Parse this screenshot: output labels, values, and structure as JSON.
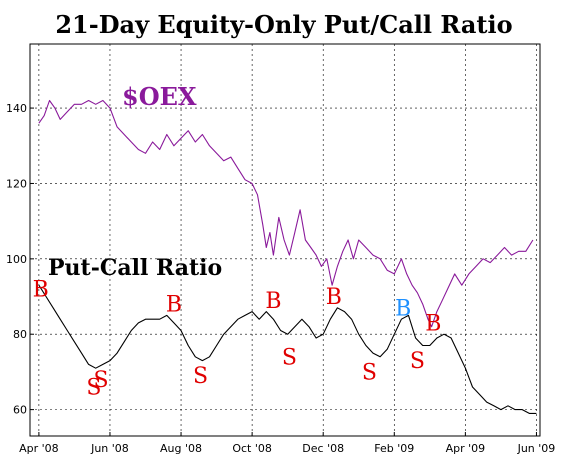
{
  "chart_data": {
    "type": "line",
    "title": "21-Day Equity-Only Put/Call Ratio",
    "xlabel": "",
    "ylabel": "",
    "x_ticks": [
      "Apr '08",
      "Jun '08",
      "Aug '08",
      "Oct '08",
      "Dec '08",
      "Feb '09",
      "Apr '09",
      "Jun '09"
    ],
    "x_tick_pos": [
      0,
      2,
      4,
      6,
      8,
      10,
      12,
      14
    ],
    "xlim": [
      -0.25,
      14.1
    ],
    "ylim": [
      53,
      157
    ],
    "y_ticks": [
      60,
      80,
      100,
      120,
      140
    ],
    "grid": true,
    "annotations": {
      "oex_label": "$OEX",
      "pc_label": "Put-Call Ratio"
    },
    "series": [
      {
        "name": "$OEX",
        "color": "#8a1a9b",
        "points": [
          [
            0,
            136
          ],
          [
            0.15,
            138
          ],
          [
            0.3,
            142
          ],
          [
            0.45,
            140
          ],
          [
            0.6,
            137
          ],
          [
            0.8,
            139
          ],
          [
            1.0,
            141
          ],
          [
            1.2,
            141
          ],
          [
            1.4,
            142
          ],
          [
            1.6,
            141
          ],
          [
            1.8,
            142
          ],
          [
            2.0,
            140
          ],
          [
            2.2,
            135
          ],
          [
            2.4,
            133
          ],
          [
            2.6,
            131
          ],
          [
            2.8,
            129
          ],
          [
            3.0,
            128
          ],
          [
            3.2,
            131
          ],
          [
            3.4,
            129
          ],
          [
            3.6,
            133
          ],
          [
            3.8,
            130
          ],
          [
            4.0,
            132
          ],
          [
            4.2,
            134
          ],
          [
            4.4,
            131
          ],
          [
            4.6,
            133
          ],
          [
            4.8,
            130
          ],
          [
            5.0,
            128
          ],
          [
            5.2,
            126
          ],
          [
            5.4,
            127
          ],
          [
            5.6,
            124
          ],
          [
            5.8,
            121
          ],
          [
            6.0,
            120
          ],
          [
            6.15,
            117
          ],
          [
            6.3,
            109
          ],
          [
            6.4,
            103
          ],
          [
            6.5,
            107
          ],
          [
            6.6,
            101
          ],
          [
            6.75,
            111
          ],
          [
            6.9,
            105
          ],
          [
            7.05,
            101
          ],
          [
            7.2,
            107
          ],
          [
            7.35,
            113
          ],
          [
            7.5,
            105
          ],
          [
            7.65,
            103
          ],
          [
            7.8,
            101
          ],
          [
            7.95,
            98
          ],
          [
            8.1,
            100
          ],
          [
            8.25,
            93
          ],
          [
            8.4,
            98
          ],
          [
            8.55,
            102
          ],
          [
            8.7,
            105
          ],
          [
            8.85,
            100
          ],
          [
            9.0,
            105
          ],
          [
            9.2,
            103
          ],
          [
            9.4,
            101
          ],
          [
            9.6,
            100
          ],
          [
            9.8,
            97
          ],
          [
            10.0,
            96
          ],
          [
            10.2,
            100
          ],
          [
            10.35,
            96
          ],
          [
            10.5,
            93
          ],
          [
            10.65,
            91
          ],
          [
            10.8,
            88
          ],
          [
            10.95,
            84
          ],
          [
            11.05,
            82
          ],
          [
            11.2,
            86
          ],
          [
            11.35,
            89
          ],
          [
            11.5,
            92
          ],
          [
            11.7,
            96
          ],
          [
            11.9,
            93
          ],
          [
            12.1,
            96
          ],
          [
            12.3,
            98
          ],
          [
            12.5,
            100
          ],
          [
            12.7,
            99
          ],
          [
            12.9,
            101
          ],
          [
            13.1,
            103
          ],
          [
            13.3,
            101
          ],
          [
            13.5,
            102
          ],
          [
            13.7,
            102
          ],
          [
            13.9,
            105
          ]
        ]
      },
      {
        "name": "Put-Call Ratio",
        "color": "#000000",
        "points": [
          [
            0,
            93
          ],
          [
            0.2,
            90
          ],
          [
            0.4,
            87
          ],
          [
            0.6,
            84
          ],
          [
            0.8,
            81
          ],
          [
            1.0,
            78
          ],
          [
            1.2,
            75
          ],
          [
            1.4,
            72
          ],
          [
            1.6,
            71
          ],
          [
            1.8,
            72
          ],
          [
            2.0,
            73
          ],
          [
            2.2,
            75
          ],
          [
            2.4,
            78
          ],
          [
            2.6,
            81
          ],
          [
            2.8,
            83
          ],
          [
            3.0,
            84
          ],
          [
            3.2,
            84
          ],
          [
            3.4,
            84
          ],
          [
            3.6,
            85
          ],
          [
            3.8,
            83
          ],
          [
            4.0,
            81
          ],
          [
            4.2,
            77
          ],
          [
            4.4,
            74
          ],
          [
            4.6,
            73
          ],
          [
            4.8,
            74
          ],
          [
            5.0,
            77
          ],
          [
            5.2,
            80
          ],
          [
            5.4,
            82
          ],
          [
            5.6,
            84
          ],
          [
            5.8,
            85
          ],
          [
            6.0,
            86
          ],
          [
            6.2,
            84
          ],
          [
            6.4,
            86
          ],
          [
            6.6,
            84
          ],
          [
            6.8,
            81
          ],
          [
            7.0,
            80
          ],
          [
            7.2,
            82
          ],
          [
            7.4,
            84
          ],
          [
            7.6,
            82
          ],
          [
            7.8,
            79
          ],
          [
            8.0,
            80
          ],
          [
            8.2,
            84
          ],
          [
            8.4,
            87
          ],
          [
            8.6,
            86
          ],
          [
            8.8,
            84
          ],
          [
            9.0,
            80
          ],
          [
            9.2,
            77
          ],
          [
            9.4,
            75
          ],
          [
            9.6,
            74
          ],
          [
            9.8,
            76
          ],
          [
            10.0,
            80
          ],
          [
            10.2,
            84
          ],
          [
            10.4,
            85
          ],
          [
            10.6,
            79
          ],
          [
            10.8,
            77
          ],
          [
            11.0,
            77
          ],
          [
            11.2,
            79
          ],
          [
            11.4,
            80
          ],
          [
            11.6,
            79
          ],
          [
            11.8,
            75
          ],
          [
            12.0,
            71
          ],
          [
            12.2,
            66
          ],
          [
            12.4,
            64
          ],
          [
            12.6,
            62
          ],
          [
            12.8,
            61
          ],
          [
            13.0,
            60
          ],
          [
            13.2,
            61
          ],
          [
            13.4,
            60
          ],
          [
            13.6,
            60
          ],
          [
            13.8,
            59
          ],
          [
            14.0,
            59
          ]
        ]
      }
    ],
    "signals": [
      {
        "label": "B",
        "x": 0.05,
        "y": 90,
        "color": "#e00000"
      },
      {
        "label": "S",
        "x": 1.55,
        "y": 64,
        "color": "#e00000"
      },
      {
        "label": "S",
        "x": 1.75,
        "y": 66,
        "color": "#e00000"
      },
      {
        "label": "B",
        "x": 3.8,
        "y": 86,
        "color": "#e00000"
      },
      {
        "label": "S",
        "x": 4.55,
        "y": 67,
        "color": "#e00000"
      },
      {
        "label": "B",
        "x": 6.6,
        "y": 87,
        "color": "#e00000"
      },
      {
        "label": "S",
        "x": 7.05,
        "y": 72,
        "color": "#e00000"
      },
      {
        "label": "B",
        "x": 8.3,
        "y": 88,
        "color": "#e00000"
      },
      {
        "label": "S",
        "x": 9.3,
        "y": 68,
        "color": "#e00000"
      },
      {
        "label": "B",
        "x": 10.25,
        "y": 85,
        "color": "#1e90ff"
      },
      {
        "label": "S",
        "x": 10.65,
        "y": 71,
        "color": "#e00000"
      },
      {
        "label": "B",
        "x": 11.1,
        "y": 81,
        "color": "#e00000"
      }
    ]
  }
}
